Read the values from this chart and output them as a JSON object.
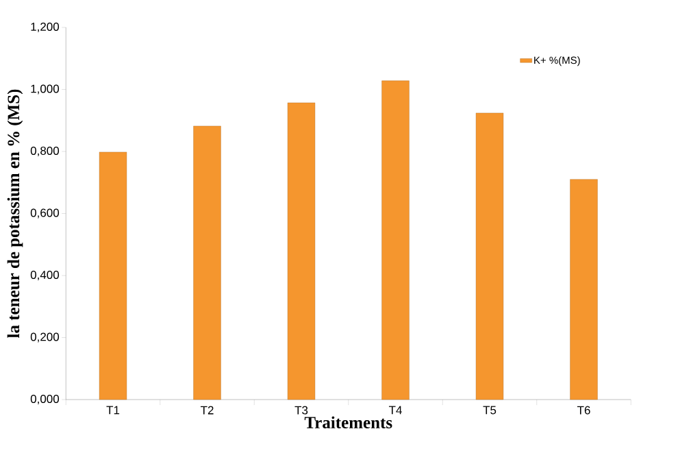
{
  "chart_data": {
    "type": "bar",
    "xlabel": "Traitements",
    "ylabel": "la teneur de potassium en % (MS)",
    "categories": [
      "T1",
      "T2",
      "T3",
      "T4",
      "T5",
      "T6"
    ],
    "series": [
      {
        "name": "K+ %(MS)",
        "color": "#f5962e",
        "values": [
          0.798,
          0.882,
          0.957,
          1.028,
          0.924,
          0.71
        ]
      }
    ],
    "ylim": [
      0,
      1.2
    ],
    "yticks": [
      {
        "value": 0,
        "label": "0,000"
      },
      {
        "value": 0.2,
        "label": "0,200"
      },
      {
        "value": 0.4,
        "label": "0,400"
      },
      {
        "value": 0.6,
        "label": "0,600"
      },
      {
        "value": 0.8,
        "label": "0,800"
      },
      {
        "value": 1.0,
        "label": "1,000"
      },
      {
        "value": 1.2,
        "label": "1,200"
      }
    ],
    "legend": "top right"
  }
}
